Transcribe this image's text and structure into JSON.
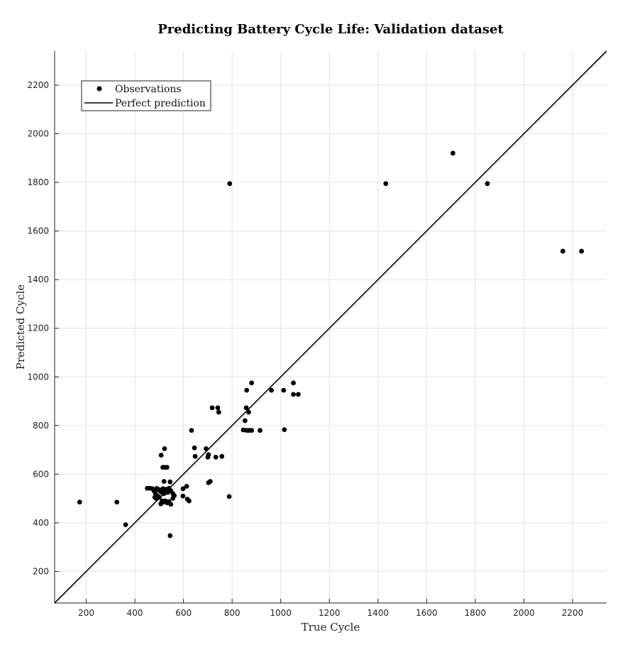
{
  "chart_data": {
    "type": "scatter",
    "title": "Predicting Battery Cycle Life: Validation dataset",
    "xlabel": "True Cycle",
    "ylabel": "Predicted Cycle",
    "xlim": [
      70,
      2340
    ],
    "ylim": [
      70,
      2340
    ],
    "xticks": [
      200,
      400,
      600,
      800,
      1000,
      1200,
      1400,
      1600,
      1800,
      2000,
      2200
    ],
    "yticks": [
      200,
      400,
      600,
      800,
      1000,
      1200,
      1400,
      1600,
      1800,
      2000,
      2200
    ],
    "grid": true,
    "legend_position": "top-left",
    "series": [
      {
        "name": "Observations",
        "kind": "points",
        "color": "#000000",
        "points": [
          [
            173,
            485
          ],
          [
            326,
            485
          ],
          [
            362,
            392
          ],
          [
            545,
            347
          ],
          [
            451,
            542
          ],
          [
            462,
            542
          ],
          [
            472,
            540
          ],
          [
            480,
            530
          ],
          [
            485,
            520
          ],
          [
            490,
            541
          ],
          [
            495,
            538
          ],
          [
            500,
            535
          ],
          [
            505,
            530
          ],
          [
            510,
            525
          ],
          [
            515,
            540
          ],
          [
            520,
            520
          ],
          [
            525,
            538
          ],
          [
            530,
            530
          ],
          [
            535,
            525
          ],
          [
            540,
            542
          ],
          [
            548,
            532
          ],
          [
            482,
            505
          ],
          [
            488,
            500
          ],
          [
            494,
            510
          ],
          [
            500,
            505
          ],
          [
            507,
            478
          ],
          [
            512,
            490
          ],
          [
            518,
            485
          ],
          [
            525,
            490
          ],
          [
            533,
            482
          ],
          [
            540,
            487
          ],
          [
            548,
            476
          ],
          [
            556,
            500
          ],
          [
            562,
            512
          ],
          [
            556,
            520
          ],
          [
            545,
            568
          ],
          [
            520,
            570
          ],
          [
            515,
            628
          ],
          [
            523,
            628
          ],
          [
            532,
            628
          ],
          [
            508,
            678
          ],
          [
            522,
            705
          ],
          [
            598,
            510
          ],
          [
            598,
            540
          ],
          [
            613,
            550
          ],
          [
            616,
            497
          ],
          [
            623,
            490
          ],
          [
            633,
            780
          ],
          [
            645,
            708
          ],
          [
            648,
            673
          ],
          [
            693,
            705
          ],
          [
            700,
            670
          ],
          [
            703,
            680
          ],
          [
            703,
            565
          ],
          [
            710,
            570
          ],
          [
            718,
            873
          ],
          [
            733,
            670
          ],
          [
            741,
            873
          ],
          [
            745,
            855
          ],
          [
            758,
            673
          ],
          [
            788,
            508
          ],
          [
            790,
            1795
          ],
          [
            846,
            782
          ],
          [
            853,
            820
          ],
          [
            858,
            873
          ],
          [
            860,
            945
          ],
          [
            860,
            780
          ],
          [
            870,
            780
          ],
          [
            868,
            855
          ],
          [
            880,
            975
          ],
          [
            880,
            780
          ],
          [
            915,
            780
          ],
          [
            962,
            945
          ],
          [
            1012,
            945
          ],
          [
            1015,
            783
          ],
          [
            1052,
            975
          ],
          [
            1052,
            928
          ],
          [
            1072,
            928
          ],
          [
            1432,
            1795
          ],
          [
            1708,
            1920
          ],
          [
            1850,
            1795
          ],
          [
            2160,
            1517
          ],
          [
            2237,
            1517
          ]
        ]
      },
      {
        "name": "Perfect prediction",
        "kind": "line",
        "color": "#000000",
        "points": [
          [
            70,
            70
          ],
          [
            2340,
            2340
          ]
        ]
      }
    ]
  }
}
